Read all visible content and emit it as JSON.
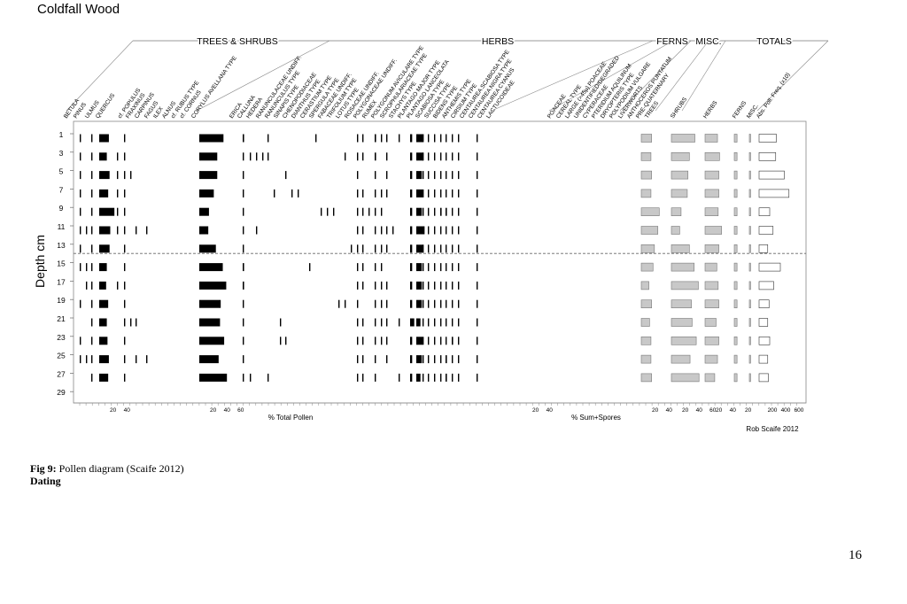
{
  "chart_data": {
    "type": "bar",
    "title": "Coldfall Wood",
    "ylabel": "Depth cm",
    "xlabel_left": "% Total Pollen",
    "xlabel_right": "% Sum+Spores",
    "credit": "Rob Scaife 2012",
    "groups": [
      "TREES & SHRUBS",
      "HERBS",
      "FERNS",
      "MISC.",
      "TOTALS"
    ],
    "depths": [
      1,
      3,
      5,
      7,
      9,
      11,
      13,
      15,
      17,
      19,
      21,
      23,
      25,
      27
    ],
    "depth_ticks": [
      "1",
      "3",
      "5",
      "7",
      "9",
      "11",
      "13",
      "15",
      "17",
      "19",
      "21",
      "23",
      "25",
      "27",
      "29"
    ],
    "zone_boundary_depth": 14,
    "taxa": [
      {
        "name": "BETULA",
        "style": "black",
        "values": [
          1,
          1,
          1,
          1,
          1,
          1,
          1,
          1,
          0,
          1,
          0,
          1,
          1,
          0
        ]
      },
      {
        "name": "PINUS",
        "style": "black",
        "values": [
          0,
          0,
          0,
          0,
          0,
          1,
          0,
          1,
          1,
          0,
          0,
          0,
          1,
          0
        ]
      },
      {
        "name": "ULMUS",
        "style": "black",
        "values": [
          1,
          1,
          1,
          1,
          1,
          1,
          1,
          1,
          1,
          1,
          1,
          1,
          1,
          1
        ]
      },
      {
        "name": "QUERCUS",
        "style": "black",
        "values": [
          14,
          11,
          15,
          13,
          22,
          16,
          15,
          11,
          10,
          13,
          11,
          12,
          14,
          13
        ]
      },
      {
        "name": "cf. POPULUS",
        "style": "black",
        "values": [
          0,
          1,
          1,
          1,
          1,
          1,
          0,
          0,
          1,
          0,
          0,
          0,
          0,
          0
        ]
      },
      {
        "name": "FRAXINUS",
        "style": "black",
        "values": [
          1,
          1,
          1,
          1,
          1,
          1,
          1,
          1,
          1,
          1,
          1,
          1,
          1,
          1
        ]
      },
      {
        "name": "CARPINUS",
        "style": "black",
        "values": [
          0,
          0,
          1,
          0,
          0,
          0,
          0,
          0,
          0,
          0,
          1,
          0,
          0,
          0
        ]
      },
      {
        "name": "FAGUS",
        "style": "black",
        "values": [
          0,
          0,
          0,
          0,
          0,
          1,
          0,
          0,
          0,
          0,
          1,
          0,
          1,
          0
        ]
      },
      {
        "name": "ILEX",
        "style": "black",
        "values": [
          0,
          0,
          0,
          0,
          0,
          0,
          0,
          0,
          0,
          0,
          0,
          0,
          0,
          0
        ]
      },
      {
        "name": "ALNUS",
        "style": "black",
        "values": [
          0,
          0,
          0,
          0,
          0,
          1,
          0,
          0,
          0,
          0,
          0,
          0,
          1,
          0
        ]
      },
      {
        "name": "cf. RUBUS TYPE",
        "style": "black",
        "values": [
          0,
          0,
          0,
          0,
          0,
          0,
          0,
          0,
          0,
          0,
          0,
          0,
          0,
          0
        ]
      },
      {
        "name": "cf. CORNUS",
        "style": "black",
        "values": [
          0,
          0,
          0,
          0,
          0,
          0,
          0,
          0,
          0,
          0,
          0,
          0,
          0,
          0
        ]
      },
      {
        "name": "CORYLUS AVELLANA TYPE",
        "style": "black",
        "values": [
          35,
          26,
          26,
          21,
          14,
          13,
          24,
          34,
          39,
          31,
          30,
          36,
          28,
          40
        ]
      },
      {
        "name": "ERICA",
        "style": "black",
        "values": [
          0,
          0,
          0,
          0,
          0,
          0,
          0,
          0,
          0,
          0,
          0,
          0,
          0,
          0
        ]
      },
      {
        "name": "CALLUNA",
        "style": "black",
        "values": [
          2,
          1,
          1,
          1,
          1,
          1,
          1,
          2,
          2,
          1,
          1,
          1,
          1,
          1
        ]
      },
      {
        "name": "HEDERA",
        "style": "black",
        "values": [
          0,
          1,
          0,
          0,
          0,
          0,
          0,
          0,
          0,
          0,
          0,
          0,
          0,
          1
        ]
      },
      {
        "name": "RANUNCULACEAE UNDIFF.",
        "style": "black",
        "values": [
          0,
          1,
          0,
          0,
          0,
          1,
          0,
          0,
          0,
          0,
          0,
          0,
          0,
          0
        ]
      },
      {
        "name": "RANUNCULUS TYPE",
        "style": "black",
        "values": [
          0,
          1,
          0,
          0,
          0,
          0,
          0,
          0,
          0,
          0,
          0,
          0,
          0,
          0
        ]
      },
      {
        "name": "SINAPIS TYPE",
        "style": "black",
        "values": [
          1,
          1,
          0,
          0,
          0,
          0,
          0,
          0,
          0,
          0,
          0,
          0,
          0,
          1
        ]
      },
      {
        "name": "CHENOPODIACEAE",
        "style": "black",
        "values": [
          0,
          0,
          0,
          1,
          0,
          0,
          0,
          0,
          0,
          0,
          0,
          0,
          0,
          0
        ]
      },
      {
        "name": "DIANTHUS TYPE",
        "style": "black",
        "values": [
          0,
          0,
          0,
          0,
          0,
          0,
          0,
          0,
          0,
          0,
          1,
          1,
          0,
          0
        ]
      },
      {
        "name": "CERASTIUM TYPE",
        "style": "black",
        "values": [
          0,
          0,
          1,
          0,
          0,
          0,
          0,
          0,
          0,
          0,
          0,
          1,
          0,
          0
        ]
      },
      {
        "name": "SPERGULA TYPE",
        "style": "black",
        "values": [
          0,
          0,
          0,
          1,
          0,
          0,
          0,
          0,
          0,
          0,
          0,
          0,
          0,
          0
        ]
      },
      {
        "name": "FABACEAE UNDIFF.",
        "style": "black",
        "values": [
          0,
          0,
          0,
          1,
          0,
          0,
          0,
          0,
          0,
          0,
          0,
          0,
          0,
          0
        ]
      },
      {
        "name": "TRIFOLIUM TYPE",
        "style": "black",
        "values": [
          0,
          0,
          0,
          0,
          0,
          0,
          0,
          0,
          0,
          0,
          0,
          0,
          0,
          0
        ]
      },
      {
        "name": "LOTUS TYPE",
        "style": "black",
        "values": [
          0,
          0,
          0,
          0,
          0,
          0,
          0,
          1,
          0,
          0,
          0,
          0,
          0,
          0
        ]
      },
      {
        "name": "ROSACEAE UNDIFF.",
        "style": "black",
        "values": [
          1,
          0,
          0,
          0,
          0,
          0,
          0,
          0,
          0,
          0,
          0,
          0,
          0,
          0
        ]
      },
      {
        "name": "POLYGONACEAE UNDIFF.",
        "style": "black",
        "values": [
          0,
          0,
          0,
          0,
          1,
          0,
          0,
          0,
          0,
          0,
          0,
          0,
          0,
          0
        ]
      },
      {
        "name": "RUMEX",
        "style": "black",
        "values": [
          0,
          0,
          0,
          0,
          1,
          0,
          0,
          0,
          0,
          0,
          0,
          0,
          0,
          0
        ]
      },
      {
        "name": "POLYGONUM AVICULARE TYPE",
        "style": "black",
        "values": [
          0,
          0,
          0,
          0,
          1,
          0,
          0,
          0,
          0,
          0,
          0,
          0,
          0,
          0
        ]
      },
      {
        "name": "SCROPHULARIACEAE TYPE",
        "style": "black",
        "values": [
          0,
          0,
          0,
          0,
          0,
          0,
          0,
          0,
          0,
          1,
          0,
          0,
          0,
          0
        ]
      },
      {
        "name": "STACHYS TYPE",
        "style": "black",
        "values": [
          0,
          1,
          0,
          0,
          0,
          0,
          0,
          0,
          0,
          1,
          0,
          0,
          0,
          0
        ]
      },
      {
        "name": "PLANTAGO MAJOR TYPE",
        "style": "black",
        "values": [
          0,
          0,
          0,
          0,
          0,
          0,
          1,
          0,
          0,
          0,
          0,
          0,
          0,
          0
        ]
      },
      {
        "name": "PLANTAGO LANCEOLATA",
        "style": "black",
        "values": [
          1,
          1,
          1,
          1,
          1,
          1,
          1,
          1,
          1,
          1,
          1,
          1,
          1,
          1
        ]
      },
      {
        "name": "SCABIOSA TYPE",
        "style": "black",
        "values": [
          1,
          1,
          0,
          1,
          1,
          1,
          1,
          1,
          1,
          0,
          1,
          1,
          1,
          1
        ]
      },
      {
        "name": "SUCCISA TYPE",
        "style": "black",
        "values": [
          0,
          0,
          0,
          0,
          1,
          0,
          0,
          0,
          0,
          0,
          0,
          0,
          0,
          0
        ]
      },
      {
        "name": "BIDENS TYPE",
        "style": "black",
        "values": [
          2,
          2,
          1,
          1,
          1,
          1,
          1,
          1,
          1,
          1,
          1,
          1,
          1,
          1
        ]
      },
      {
        "name": "ANTHEMIS TYPE",
        "style": "black",
        "values": [
          1,
          0,
          0,
          1,
          1,
          1,
          1,
          1,
          1,
          1,
          1,
          1,
          0,
          0
        ]
      },
      {
        "name": "CIRSIUM TYPE",
        "style": "black",
        "values": [
          1,
          1,
          1,
          1,
          0,
          1,
          1,
          0,
          1,
          1,
          1,
          1,
          1,
          0
        ]
      },
      {
        "name": "CENTAUREA SCABIOSA TYPE",
        "style": "black",
        "values": [
          0,
          0,
          0,
          0,
          0,
          1,
          0,
          0,
          0,
          0,
          0,
          0,
          0,
          0
        ]
      },
      {
        "name": "CENTAUREA NIGRA TYPE",
        "style": "black",
        "values": [
          1,
          0,
          0,
          0,
          0,
          0,
          0,
          0,
          0,
          0,
          1,
          0,
          0,
          1
        ]
      },
      {
        "name": "CENTAUREA CYANUS",
        "style": "black",
        "values": [
          0,
          0,
          0,
          0,
          0,
          0,
          0,
          0,
          0,
          0,
          0,
          0,
          0,
          0
        ]
      },
      {
        "name": "LACTUCOIDEAE",
        "style": "black",
        "values": [
          3,
          3,
          3,
          3,
          3,
          3,
          3,
          3,
          3,
          3,
          6,
          3,
          3,
          3
        ]
      },
      {
        "name": "POACEAE",
        "style": "black",
        "values": [
          9,
          10,
          8,
          9,
          8,
          12,
          10,
          8,
          8,
          8,
          6,
          9,
          8,
          6
        ]
      },
      {
        "name": "CEREAL TYPE",
        "style": "black",
        "values": [
          1,
          1,
          1,
          1,
          1,
          1,
          1,
          1,
          1,
          1,
          1,
          1,
          1,
          1
        ]
      },
      {
        "name": "LARGE (>45μ) POACEAE",
        "style": "black",
        "values": [
          1,
          1,
          1,
          1,
          1,
          1,
          1,
          1,
          1,
          1,
          1,
          1,
          1,
          1
        ]
      },
      {
        "name": "UNIDENTIFIED/DEGRADED",
        "style": "black",
        "values": [
          1,
          1,
          1,
          1,
          1,
          1,
          1,
          1,
          1,
          1,
          1,
          1,
          1,
          1
        ]
      },
      {
        "name": "CYPERACEAE",
        "style": "black",
        "values": [
          1,
          1,
          1,
          1,
          2,
          1,
          1,
          1,
          1,
          1,
          1,
          1,
          1,
          1
        ]
      },
      {
        "name": "PTERIDIUM AQUILINUM",
        "style": "black",
        "values": [
          1,
          1,
          1,
          1,
          2,
          1,
          1,
          1,
          1,
          1,
          1,
          1,
          2,
          2
        ]
      },
      {
        "name": "DRYOPTERIS TYPE",
        "style": "black",
        "values": [
          1,
          1,
          1,
          1,
          1,
          1,
          1,
          1,
          1,
          1,
          1,
          2,
          1,
          1
        ]
      },
      {
        "name": "POLYPODIUM VULGARE",
        "style": "black",
        "values": [
          1,
          1,
          1,
          1,
          1,
          1,
          1,
          1,
          1,
          1,
          1,
          1,
          1,
          1
        ]
      },
      {
        "name": "LIVERWORTS",
        "style": "black",
        "values": [
          0,
          0,
          0,
          0,
          0,
          0,
          0,
          0,
          0,
          0,
          0,
          0,
          0,
          0
        ]
      },
      {
        "name": "ANTHOCEROS PUNTATUM",
        "style": "black",
        "values": [
          0,
          0,
          0,
          0,
          0,
          0,
          0,
          0,
          0,
          0,
          0,
          0,
          0,
          0
        ]
      },
      {
        "name": "PRE-QUATERNARY",
        "style": "black",
        "values": [
          1,
          1,
          1,
          1,
          1,
          1,
          1,
          1,
          1,
          1,
          1,
          1,
          1,
          1
        ]
      },
      {
        "name": "TREES",
        "style": "grey",
        "values": [
          15,
          14,
          15,
          14,
          26,
          24,
          19,
          17,
          11,
          15,
          12,
          14,
          14,
          15
        ]
      },
      {
        "name": "SHRUBS",
        "style": "grey",
        "values": [
          34,
          26,
          24,
          23,
          14,
          12,
          26,
          33,
          39,
          29,
          30,
          36,
          27,
          40
        ]
      },
      {
        "name": "HERBS",
        "style": "grey",
        "values": [
          18,
          21,
          20,
          20,
          19,
          24,
          20,
          17,
          19,
          20,
          16,
          20,
          18,
          14
        ]
      },
      {
        "name": "FERNS",
        "style": "grey",
        "values": [
          4,
          4,
          4,
          4,
          4,
          4,
          4,
          4,
          4,
          4,
          4,
          4,
          4,
          4
        ]
      },
      {
        "name": "MISC.",
        "style": "grey",
        "values": [
          1,
          1,
          1,
          1,
          1,
          1,
          1,
          1,
          1,
          1,
          1,
          1,
          1,
          1
        ]
      },
      {
        "name": "Abs. Poll. Freq. (x10)",
        "style": "open",
        "values": [
          260,
          250,
          380,
          450,
          160,
          210,
          130,
          320,
          220,
          150,
          130,
          160,
          130,
          140
        ]
      }
    ],
    "scales": [
      {
        "labels": [
          "20",
          "40"
        ]
      },
      {
        "labels": [
          "20",
          "40",
          "60"
        ]
      },
      {
        "labels": [
          "20",
          "40"
        ]
      },
      {
        "labels": [
          "20",
          "40"
        ]
      },
      {
        "labels": [
          "20",
          "40",
          "60"
        ]
      },
      {
        "labels": [
          "20",
          "40"
        ]
      },
      {
        "labels": [
          "20"
        ]
      },
      {
        "labels": [
          "200",
          "400",
          "600"
        ]
      }
    ]
  },
  "caption": {
    "fig_label": "Fig 9:",
    "fig_text": " Pollen diagram (Scaife 2012)",
    "heading": "Dating"
  },
  "page_number": "16"
}
